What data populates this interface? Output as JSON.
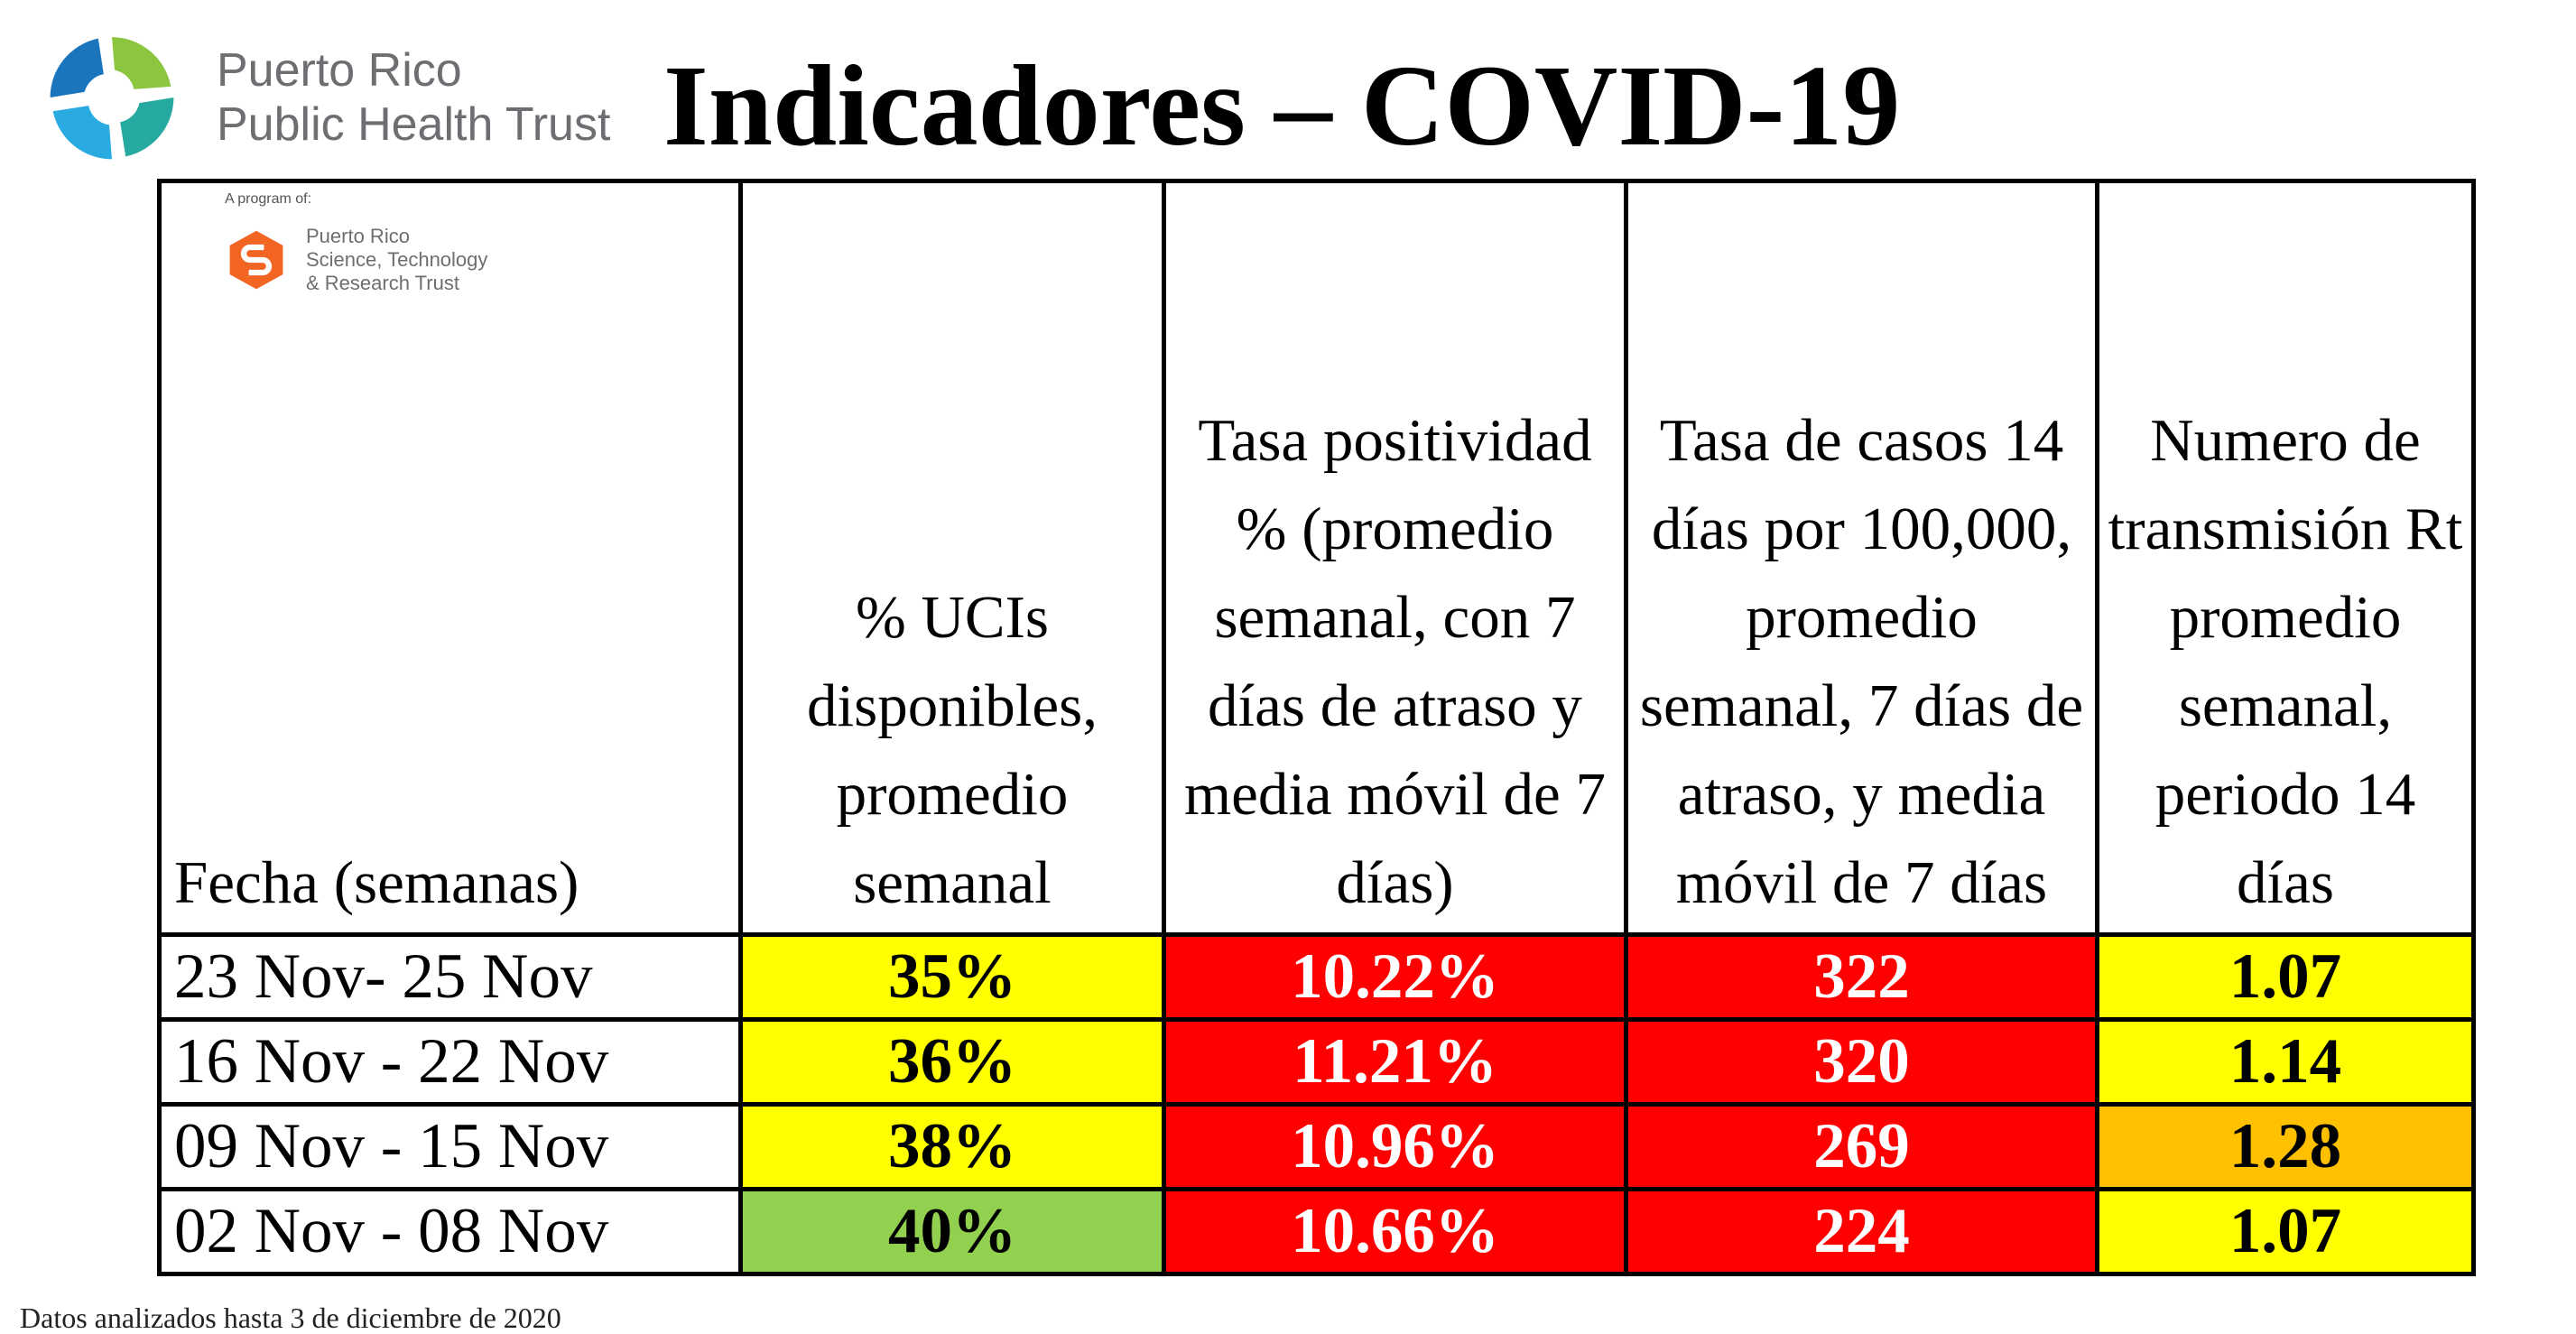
{
  "title": "Indicadores – COVID-19",
  "org": {
    "line1": "Puerto Rico",
    "line2": "Public Health Trust"
  },
  "sub_org": {
    "label": "A program of:",
    "line1": "Puerto Rico",
    "line2": "Science, Technology",
    "line3": "& Research Trust"
  },
  "table": {
    "headers": [
      "Fecha (semanas)",
      "% UCIs disponibles, promedio semanal",
      "Tasa positividad % (promedio semanal, con 7 días de atraso y media móvil de 7 días)",
      "Tasa de casos 14 días por 100,000, promedio semanal, 7 días de atraso, y media móvil de 7 días",
      "Numero de transmisión Rt promedio semanal, periodo 14 días"
    ],
    "rows": [
      {
        "date": "23 Nov- 25 Nov",
        "uci": "35%",
        "pos": "10.22%",
        "casos": "322",
        "rt": "1.07"
      },
      {
        "date": "16 Nov - 22 Nov",
        "uci": "36%",
        "pos": "11.21%",
        "casos": "320",
        "rt": "1.14"
      },
      {
        "date": "09 Nov - 15 Nov",
        "uci": "38%",
        "pos": "10.96%",
        "casos": "269",
        "rt": "1.28"
      },
      {
        "date": "02 Nov - 08 Nov",
        "uci": "40%",
        "pos": "10.66%",
        "casos": "224",
        "rt": "1.07"
      }
    ],
    "cell_colors": {
      "uci": [
        "yellow",
        "yellow",
        "yellow",
        "green"
      ],
      "pos": [
        "red",
        "red",
        "red",
        "red"
      ],
      "casos": [
        "red",
        "red",
        "red",
        "red"
      ],
      "rt": [
        "yellow",
        "yellow",
        "orange",
        "yellow"
      ]
    }
  },
  "colors": {
    "yellow": "#ffff00",
    "green": "#92d050",
    "red": "#ff0000",
    "orange": "#ffc000"
  },
  "footer": "Datos analizados hasta 3 de diciembre de 2020"
}
